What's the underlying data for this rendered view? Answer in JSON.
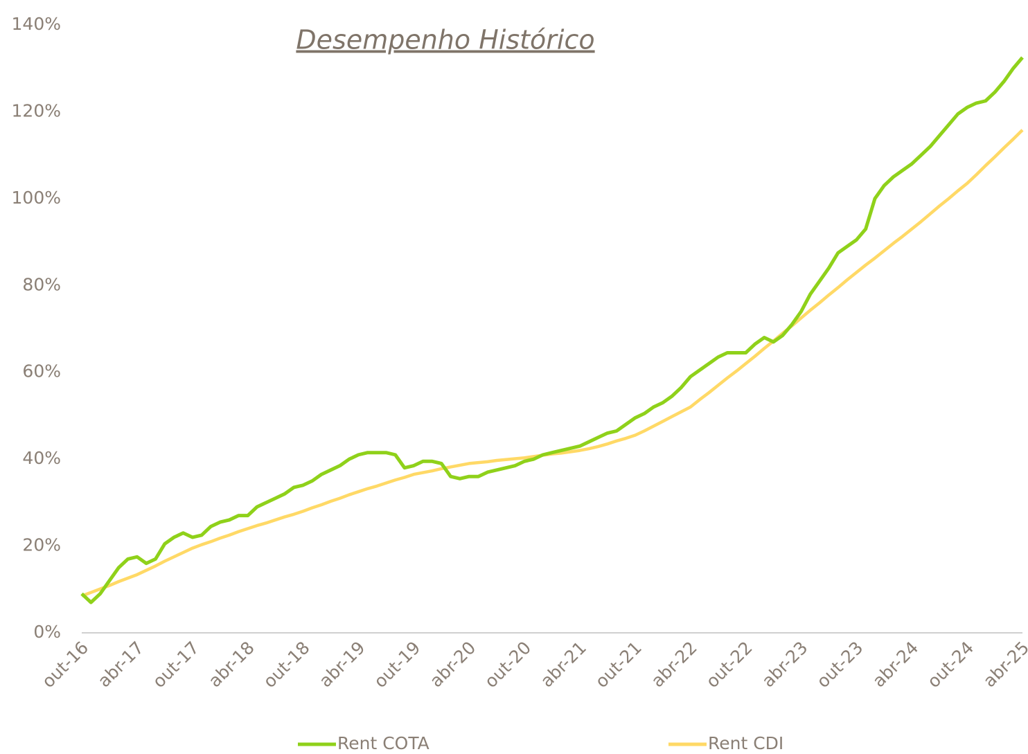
{
  "chart_data": {
    "type": "line",
    "title": "Desempenho Histórico",
    "categories": [
      "out-16",
      null,
      null,
      null,
      null,
      null,
      "abr-17",
      null,
      null,
      null,
      null,
      null,
      "out-17",
      null,
      null,
      null,
      null,
      null,
      "abr-18",
      null,
      null,
      null,
      null,
      null,
      "out-18",
      null,
      null,
      null,
      null,
      null,
      "abr-19",
      null,
      null,
      null,
      null,
      null,
      "out-19",
      null,
      null,
      null,
      null,
      null,
      "abr-20",
      null,
      null,
      null,
      null,
      null,
      "out-20",
      null,
      null,
      null,
      null,
      null,
      "abr-21",
      null,
      null,
      null,
      null,
      null,
      "out-21",
      null,
      null,
      null,
      null,
      null,
      "abr-22",
      null,
      null,
      null,
      null,
      null,
      "out-22",
      null,
      null,
      null,
      null,
      null,
      "abr-23",
      null,
      null,
      null,
      null,
      null,
      "out-23",
      null,
      null,
      null,
      null,
      null,
      "abr-24",
      null,
      null,
      null,
      null,
      null,
      "out-24",
      null,
      null,
      null,
      null,
      null,
      "abr-25"
    ],
    "series": [
      {
        "name": "Rent COTA",
        "color": "#8fd11a",
        "values": [
          9,
          7,
          9,
          12,
          15,
          17,
          17.5,
          16,
          17,
          20.5,
          22,
          23,
          22,
          22.5,
          24.5,
          25.5,
          26,
          27,
          27,
          29,
          30,
          31,
          32,
          33.5,
          34,
          35,
          36.5,
          37.5,
          38.5,
          40,
          41,
          41.5,
          41.5,
          41.5,
          41,
          38,
          38.5,
          39.5,
          39.5,
          39,
          36,
          35.5,
          36,
          36,
          37,
          37.5,
          38,
          38.5,
          39.5,
          40,
          41,
          41.5,
          42,
          42.5,
          43,
          44,
          45,
          46,
          46.5,
          48,
          49.5,
          50.5,
          52,
          53,
          54.5,
          56.5,
          59,
          60.5,
          62,
          63.5,
          64.5,
          64.5,
          64.5,
          66.5,
          68,
          67,
          68.5,
          71,
          74,
          78,
          81,
          84,
          87.5,
          89,
          90.5,
          93,
          100,
          103,
          105,
          106.5,
          108,
          110,
          112,
          114.5,
          117,
          119.5,
          121,
          122,
          122.5,
          124.5,
          127,
          130,
          132.5
        ]
      },
      {
        "name": "Rent CDI",
        "color": "#ffd966",
        "values": [
          8.5,
          9.3,
          10.1,
          10.9,
          11.8,
          12.6,
          13.4,
          14.4,
          15.4,
          16.5,
          17.5,
          18.5,
          19.5,
          20.3,
          21,
          21.8,
          22.5,
          23.3,
          24,
          24.7,
          25.3,
          26,
          26.7,
          27.3,
          28,
          28.8,
          29.5,
          30.3,
          31,
          31.8,
          32.5,
          33.2,
          33.8,
          34.5,
          35.2,
          35.8,
          36.5,
          36.9,
          37.3,
          37.8,
          38.2,
          38.6,
          39,
          39.2,
          39.4,
          39.7,
          39.9,
          40.1,
          40.3,
          40.6,
          40.9,
          41.2,
          41.4,
          41.7,
          42,
          42.4,
          42.9,
          43.5,
          44.2,
          44.8,
          45.5,
          46.5,
          47.6,
          48.7,
          49.8,
          50.9,
          52,
          53.7,
          55.3,
          57,
          58.7,
          60.3,
          62,
          63.7,
          65.5,
          67.2,
          69,
          70.7,
          72.5,
          74.3,
          76,
          77.8,
          79.5,
          81.3,
          83,
          84.7,
          86.3,
          88,
          89.7,
          91.3,
          93,
          94.7,
          96.5,
          98.3,
          100,
          101.8,
          103.5,
          105.5,
          107.6,
          109.6,
          111.7,
          113.7,
          115.8
        ]
      }
    ],
    "ylim": [
      0,
      140
    ],
    "yticks": [
      {
        "value": 0,
        "label": "0%"
      },
      {
        "value": 20,
        "label": "20%"
      },
      {
        "value": 40,
        "label": "40%"
      },
      {
        "value": 60,
        "label": "60%"
      },
      {
        "value": 80,
        "label": "80%"
      },
      {
        "value": 100,
        "label": "100%"
      },
      {
        "value": 120,
        "label": "120%"
      },
      {
        "value": 140,
        "label": "140%"
      }
    ]
  }
}
